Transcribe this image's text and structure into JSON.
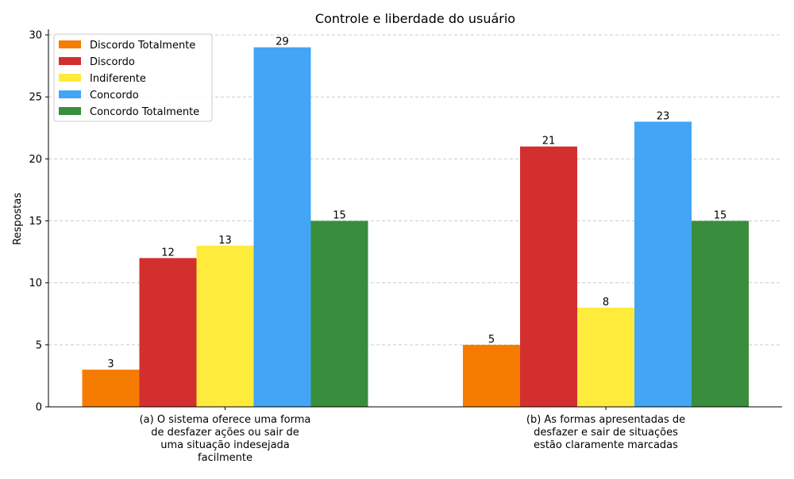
{
  "chart_data": {
    "type": "bar",
    "title": "Controle e liberdade do usuário",
    "xlabel": "",
    "ylabel": "Respostas",
    "ylim": [
      0,
      30.45
    ],
    "yticks": [
      0,
      5,
      10,
      15,
      20,
      25,
      30
    ],
    "grid": "y-dashed",
    "legend_position": "top-left",
    "categories": [
      [
        "(a) O sistema oferece uma forma",
        "de desfazer ações ou sair de",
        "uma situação indesejada",
        "facilmente"
      ],
      [
        "(b) As formas apresentadas de",
        "desfazer e sair de situações",
        "estão claramente marcadas"
      ]
    ],
    "series": [
      {
        "name": "Discordo Totalmente",
        "color": "#f57c00",
        "values": [
          3,
          5
        ]
      },
      {
        "name": "Discordo",
        "color": "#d32f2f",
        "values": [
          12,
          21
        ]
      },
      {
        "name": "Indiferente",
        "color": "#ffeb3b",
        "values": [
          13,
          8
        ]
      },
      {
        "name": "Concordo",
        "color": "#42a5f5",
        "values": [
          29,
          23
        ]
      },
      {
        "name": "Concordo Totalmente",
        "color": "#388e3c",
        "values": [
          15,
          15
        ]
      }
    ]
  }
}
